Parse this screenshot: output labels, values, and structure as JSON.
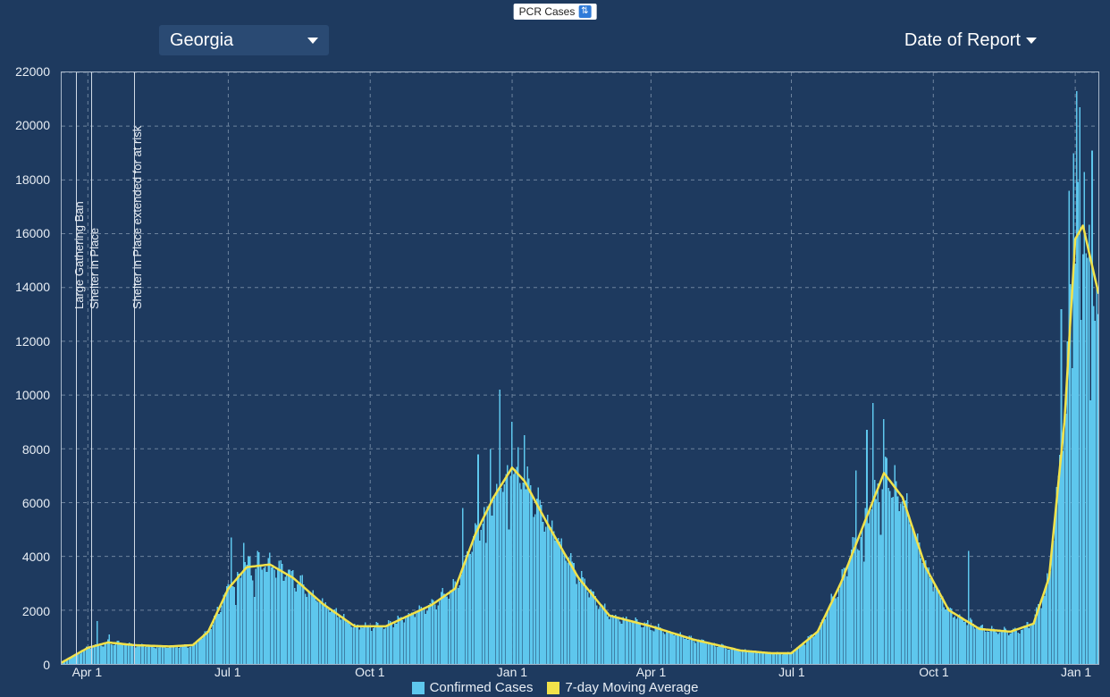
{
  "colors": {
    "background": "#1e3a5f",
    "plot_border": "#a9b8ca",
    "grid": "#6d839e",
    "text": "#e8eef5",
    "bars": "#5ec7ed",
    "line": "#f2e24a",
    "pill_bg": "#ffffff",
    "pill_text": "#222222",
    "pill_icon_bg": "#2f7bd9",
    "dropdown_bg": "#2a4a73"
  },
  "top_pill": {
    "label": "PCR Cases"
  },
  "dropdowns": {
    "region": {
      "label": "Georgia"
    },
    "date_type": {
      "label": "Date of Report"
    }
  },
  "legend": {
    "bars": "Confirmed Cases",
    "line": "7-day Moving Average"
  },
  "chart": {
    "type": "bar+line",
    "ylim": [
      0,
      22000
    ],
    "ytick_step": 2000,
    "y_ticks": [
      0,
      2000,
      4000,
      6000,
      8000,
      10000,
      12000,
      14000,
      16000,
      18000,
      20000,
      22000
    ],
    "x_start_index": 0,
    "x_end_index": 672,
    "x_ticks": [
      {
        "index": 17,
        "label": "Apr 1"
      },
      {
        "index": 108,
        "label": "Jul 1"
      },
      {
        "index": 200,
        "label": "Oct 1"
      },
      {
        "index": 292,
        "label": "Jan 1"
      },
      {
        "index": 382,
        "label": "Apr 1"
      },
      {
        "index": 473,
        "label": "Jul 1"
      },
      {
        "index": 565,
        "label": "Oct 1"
      },
      {
        "index": 657,
        "label": "Jan 1"
      }
    ],
    "annotations": [
      {
        "index": 9,
        "label": "Large Gathering Ban"
      },
      {
        "index": 19,
        "label": "Shelter in Place"
      },
      {
        "index": 47,
        "label": "Shelter in Place extended for at risk"
      }
    ],
    "moving_average_keyframes": [
      {
        "i": 0,
        "v": 50
      },
      {
        "i": 17,
        "v": 600
      },
      {
        "i": 30,
        "v": 800
      },
      {
        "i": 47,
        "v": 700
      },
      {
        "i": 70,
        "v": 650
      },
      {
        "i": 85,
        "v": 700
      },
      {
        "i": 95,
        "v": 1200
      },
      {
        "i": 108,
        "v": 2800
      },
      {
        "i": 120,
        "v": 3600
      },
      {
        "i": 135,
        "v": 3700
      },
      {
        "i": 150,
        "v": 3200
      },
      {
        "i": 170,
        "v": 2200
      },
      {
        "i": 190,
        "v": 1400
      },
      {
        "i": 210,
        "v": 1400
      },
      {
        "i": 225,
        "v": 1800
      },
      {
        "i": 240,
        "v": 2200
      },
      {
        "i": 255,
        "v": 2800
      },
      {
        "i": 268,
        "v": 4800
      },
      {
        "i": 280,
        "v": 6200
      },
      {
        "i": 292,
        "v": 7300
      },
      {
        "i": 300,
        "v": 6800
      },
      {
        "i": 315,
        "v": 5200
      },
      {
        "i": 335,
        "v": 3200
      },
      {
        "i": 355,
        "v": 1800
      },
      {
        "i": 382,
        "v": 1400
      },
      {
        "i": 410,
        "v": 900
      },
      {
        "i": 440,
        "v": 500
      },
      {
        "i": 460,
        "v": 400
      },
      {
        "i": 473,
        "v": 400
      },
      {
        "i": 490,
        "v": 1200
      },
      {
        "i": 505,
        "v": 3000
      },
      {
        "i": 520,
        "v": 5200
      },
      {
        "i": 533,
        "v": 7100
      },
      {
        "i": 545,
        "v": 6200
      },
      {
        "i": 560,
        "v": 3600
      },
      {
        "i": 575,
        "v": 2000
      },
      {
        "i": 595,
        "v": 1300
      },
      {
        "i": 615,
        "v": 1200
      },
      {
        "i": 630,
        "v": 1500
      },
      {
        "i": 640,
        "v": 3200
      },
      {
        "i": 650,
        "v": 9000
      },
      {
        "i": 657,
        "v": 15800
      },
      {
        "i": 662,
        "v": 16300
      },
      {
        "i": 672,
        "v": 13800
      }
    ],
    "bar_spikes": [
      {
        "i": 23,
        "v": 1600
      },
      {
        "i": 31,
        "v": 1100
      },
      {
        "i": 110,
        "v": 4700
      },
      {
        "i": 118,
        "v": 4500
      },
      {
        "i": 127,
        "v": 4200
      },
      {
        "i": 260,
        "v": 5800
      },
      {
        "i": 270,
        "v": 7800
      },
      {
        "i": 278,
        "v": 8000
      },
      {
        "i": 284,
        "v": 10200
      },
      {
        "i": 292,
        "v": 9000
      },
      {
        "i": 300,
        "v": 8500
      },
      {
        "i": 515,
        "v": 7200
      },
      {
        "i": 522,
        "v": 8700
      },
      {
        "i": 526,
        "v": 9700
      },
      {
        "i": 533,
        "v": 9100
      },
      {
        "i": 540,
        "v": 7400
      },
      {
        "i": 588,
        "v": 4200
      },
      {
        "i": 648,
        "v": 13200
      },
      {
        "i": 653,
        "v": 17600
      },
      {
        "i": 656,
        "v": 19000
      },
      {
        "i": 658,
        "v": 21300
      },
      {
        "i": 660,
        "v": 20700
      },
      {
        "i": 663,
        "v": 18300
      },
      {
        "i": 668,
        "v": 19100
      }
    ],
    "bar_dips": [
      {
        "i": 113,
        "v": 2200
      },
      {
        "i": 125,
        "v": 2500
      },
      {
        "i": 275,
        "v": 4500
      },
      {
        "i": 290,
        "v": 5000
      },
      {
        "i": 520,
        "v": 3800
      },
      {
        "i": 531,
        "v": 4800
      },
      {
        "i": 655,
        "v": 11000
      },
      {
        "i": 661,
        "v": 12800
      },
      {
        "i": 667,
        "v": 9800
      }
    ],
    "bar_noise_amplitude": 0.35,
    "line_width": 2.5,
    "bar_opacity": 1.0,
    "font_size_axis": 14,
    "font_size_anno": 13,
    "font_size_legend": 15
  }
}
